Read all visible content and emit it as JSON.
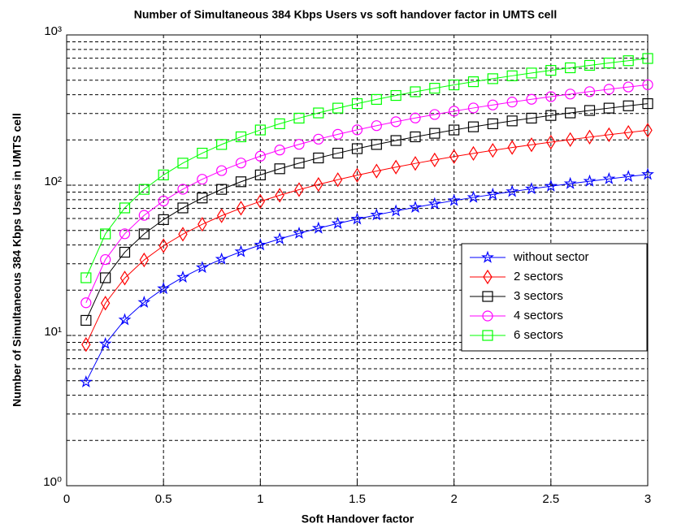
{
  "chart_data": {
    "type": "line",
    "title": "Number of Simultaneous 384 Kbps Users vs soft handover factor in UMTS cell",
    "x_label": "Soft Handover factor",
    "y_label": "Number of Simultaneous 384 Kbps Users in UMTS cell",
    "x": [
      0.1,
      0.2,
      0.3,
      0.4,
      0.5,
      0.6,
      0.7,
      0.8,
      0.9,
      1.0,
      1.1,
      1.2,
      1.3,
      1.4,
      1.5,
      1.6,
      1.7,
      1.8,
      1.9,
      2.0,
      2.1,
      2.2,
      2.3,
      2.4,
      2.5,
      2.6,
      2.7,
      2.8,
      2.9,
      3.0
    ],
    "series": [
      {
        "name": "without sector",
        "color": "#0000ff",
        "marker": "star",
        "values": [
          4.9,
          8.8,
          12.7,
          16.6,
          20.5,
          24.4,
          28.3,
          32.2,
          36.1,
          40,
          43.9,
          47.8,
          51.7,
          55.6,
          59.5,
          63.4,
          67.3,
          71.2,
          75.1,
          79,
          82.9,
          86.8,
          90.7,
          94.6,
          98.5,
          102.4,
          106.3,
          110.2,
          114.1,
          118
        ]
      },
      {
        "name": "2 sectors",
        "color": "#ff0000",
        "marker": "diamond",
        "values": [
          8.7,
          16.4,
          24.1,
          31.8,
          39.5,
          47.2,
          54.9,
          62.6,
          70.3,
          78,
          85.7,
          93.4,
          101.1,
          108.8,
          116.5,
          124.2,
          131.9,
          139.6,
          147.3,
          155,
          162.7,
          170.4,
          178.1,
          185.8,
          193.5,
          201.2,
          208.9,
          216.6,
          224.3,
          232
        ]
      },
      {
        "name": "3 sectors",
        "color": "#000000",
        "marker": "square",
        "values": [
          12.6,
          24.2,
          35.8,
          47.4,
          59,
          70.6,
          82.2,
          93.8,
          105.4,
          117,
          128.6,
          140.2,
          151.8,
          163.4,
          175,
          186.6,
          198.2,
          209.8,
          221.4,
          233,
          244.6,
          256.2,
          267.8,
          279.4,
          291,
          302.6,
          314.2,
          325.8,
          337.4,
          349
        ]
      },
      {
        "name": "4 sectors",
        "color": "#ff00ff",
        "marker": "circle",
        "values": [
          16.5,
          32,
          47.5,
          63,
          78.5,
          94,
          109.5,
          125,
          140.5,
          156,
          171.5,
          187,
          202.5,
          218,
          233.5,
          249,
          264.5,
          280,
          295.5,
          311,
          326.5,
          342,
          357.5,
          373,
          388.5,
          404,
          419.5,
          435,
          450.5,
          466
        ]
      },
      {
        "name": "6 sectors",
        "color": "#00ff00",
        "marker": "square",
        "values": [
          24.2,
          47.4,
          70.6,
          93.8,
          117,
          140.2,
          163.4,
          186.6,
          209.8,
          233,
          256.2,
          279.4,
          302.6,
          325.8,
          349,
          372.2,
          395.4,
          418.6,
          441.8,
          465,
          488.2,
          511.4,
          534.6,
          557.8,
          581,
          604.2,
          627.4,
          650.6,
          673.8,
          697
        ]
      }
    ],
    "xlim": [
      0,
      3
    ],
    "xticks": [
      0,
      0.5,
      1,
      1.5,
      2,
      2.5,
      3
    ],
    "ylim": [
      1,
      1000
    ],
    "yticks": [
      {
        "value": 1,
        "label": "10⁰"
      },
      {
        "value": 10,
        "label": "10¹"
      },
      {
        "value": 100,
        "label": "10²"
      },
      {
        "value": 1000,
        "label": "10³"
      }
    ],
    "y_log": true,
    "grid": true,
    "minor_grid": true,
    "legend": "right"
  }
}
